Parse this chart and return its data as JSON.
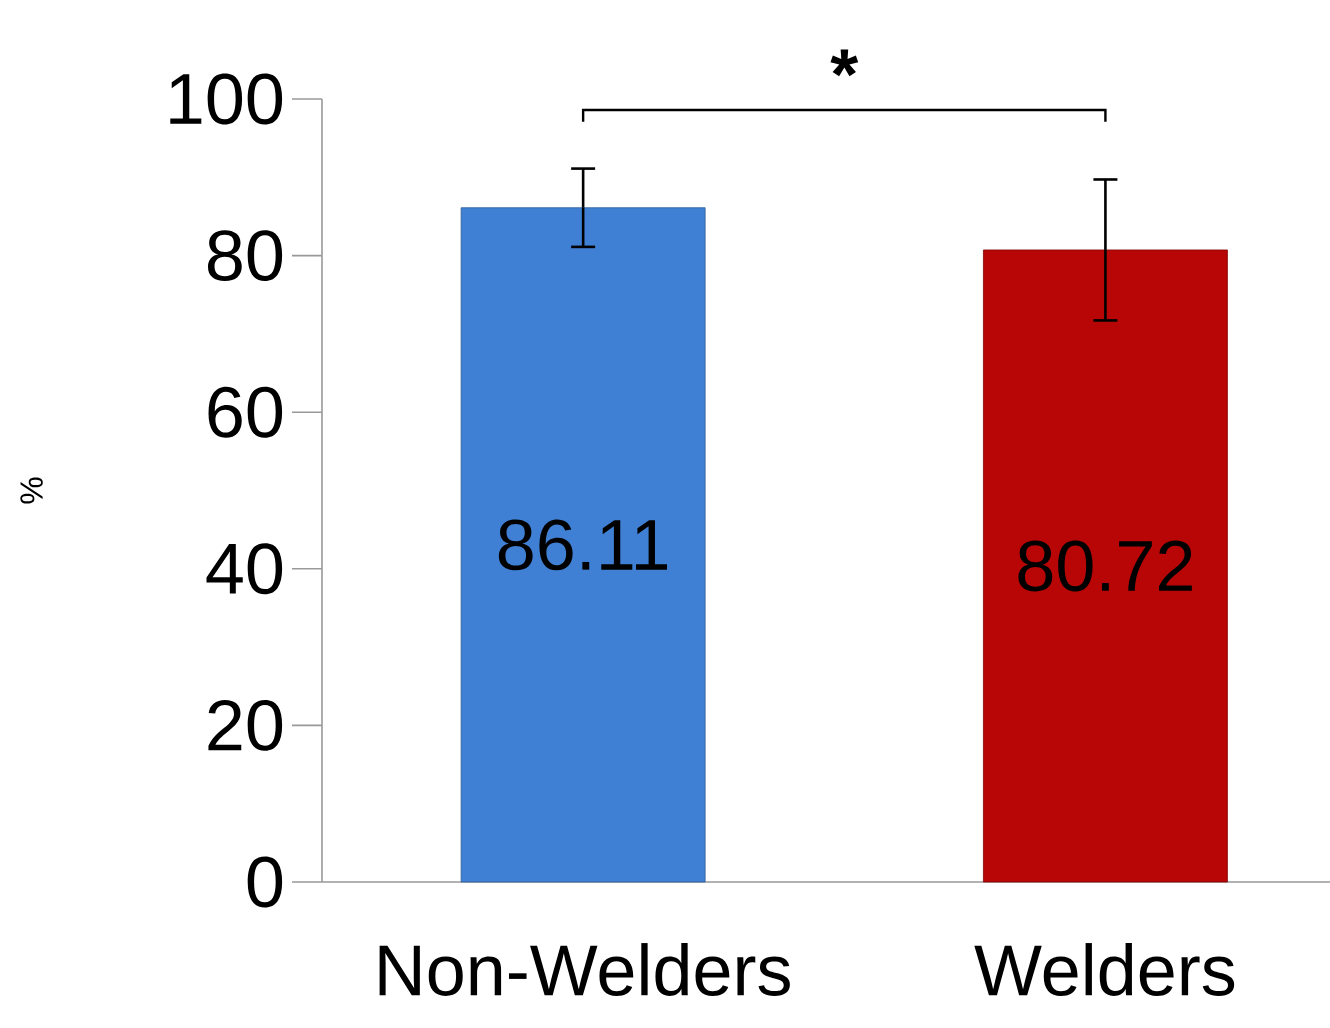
{
  "chart_data": {
    "type": "bar",
    "categories": [
      "Non-Welders",
      "Welders"
    ],
    "values": [
      86.11,
      80.72
    ],
    "colors": [
      "#3f80d4",
      "#b80606"
    ],
    "errors": [
      5,
      9
    ],
    "data_labels": true,
    "ylabel": "%",
    "ylim": [
      0,
      100
    ],
    "yticks": [
      0,
      20,
      40,
      60,
      80,
      100
    ],
    "grid": false,
    "annotations": [
      "*"
    ]
  }
}
